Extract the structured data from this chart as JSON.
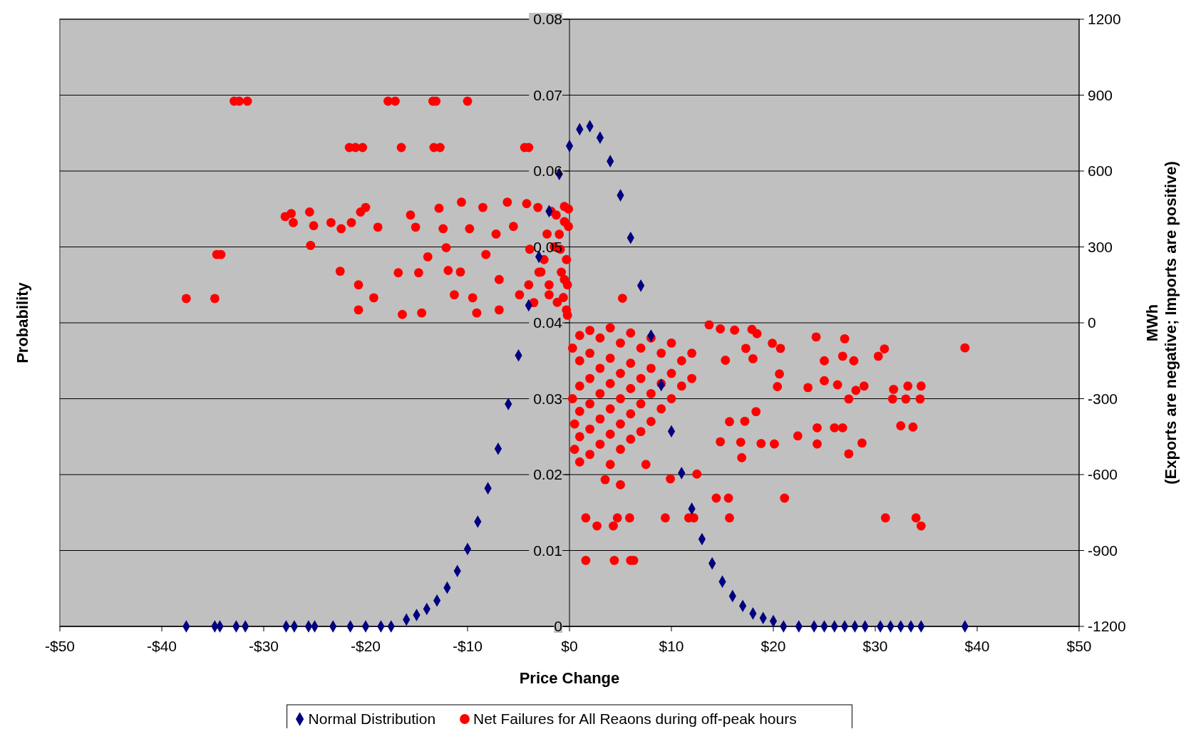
{
  "chart_data": {
    "type": "scatter",
    "xlabel": "Price Change",
    "ylabel": "Probability",
    "y2label": "MWh\n(Exports are negative; Imports are positive)",
    "xlim": [
      -50,
      50
    ],
    "xticks": [
      {
        "value": -50,
        "label": "-$50"
      },
      {
        "value": -40,
        "label": "-$40"
      },
      {
        "value": -30,
        "label": "-$30"
      },
      {
        "value": -20,
        "label": "-$20"
      },
      {
        "value": -10,
        "label": "-$10"
      },
      {
        "value": 0,
        "label": "$0"
      },
      {
        "value": 10,
        "label": "$10"
      },
      {
        "value": 20,
        "label": "$20"
      },
      {
        "value": 30,
        "label": "$30"
      },
      {
        "value": 40,
        "label": "$40"
      },
      {
        "value": 50,
        "label": "$50"
      }
    ],
    "ylim": [
      0,
      0.08
    ],
    "yticks": [
      0,
      0.01,
      0.02,
      0.03,
      0.04,
      0.05,
      0.06,
      0.07,
      0.08
    ],
    "y2lim": [
      -1200,
      1200
    ],
    "y2ticks": [
      -1200,
      -900,
      -600,
      -300,
      0,
      300,
      600,
      900,
      1200
    ],
    "grid": "y",
    "legend": "bottom",
    "series": [
      {
        "name": "Normal Distribution",
        "color": "#000080",
        "marker": "diamond",
        "x": [
          -37.6,
          -34.8,
          -34.3,
          -32.7,
          -31.8,
          -27.8,
          -27,
          -25.6,
          -25,
          -23.2,
          -21.5,
          -20,
          -18.5,
          -17.5,
          -16,
          -15,
          -14,
          -13,
          -12,
          -11,
          -10,
          -9,
          -8,
          -7,
          -6,
          -5,
          -4,
          -3,
          -2,
          -1,
          0,
          1,
          2,
          3,
          4,
          5,
          6,
          7,
          8,
          9,
          10,
          11,
          12,
          13,
          14,
          15,
          16,
          17,
          18,
          19,
          20,
          21,
          22.5,
          24,
          25,
          26,
          27,
          28,
          29,
          30.5,
          31.5,
          32.5,
          33.5,
          34.5,
          38.8
        ],
        "values": [
          0,
          0,
          0,
          0,
          0,
          0,
          0,
          0,
          0,
          0,
          0,
          0,
          0,
          0,
          0.0009,
          0.0015,
          0.0023,
          0.0034,
          0.0051,
          0.0073,
          0.0102,
          0.0138,
          0.0182,
          0.0234,
          0.0293,
          0.0357,
          0.0423,
          0.0487,
          0.0547,
          0.0596,
          0.0633,
          0.0655,
          0.0659,
          0.0644,
          0.0613,
          0.0568,
          0.0512,
          0.0449,
          0.0383,
          0.0318,
          0.0257,
          0.0202,
          0.0155,
          0.0115,
          0.0083,
          0.0059,
          0.004,
          0.0027,
          0.0017,
          0.0011,
          0.0007,
          0,
          0,
          0,
          0,
          0,
          0,
          0,
          0,
          0,
          0,
          0,
          0,
          0,
          0
        ]
      },
      {
        "name": "Net Failures for All Reaons during off-peak hours",
        "color": "#ff0000",
        "marker": "circle",
        "axis": "y2",
        "x": [
          -32.9,
          -32.4,
          -31.6,
          -17.8,
          -17.1,
          -13.4,
          -13.1,
          -10,
          -21.6,
          -21,
          -20.3,
          -16.5,
          -13.3,
          -12.7,
          -4.4,
          -4,
          -37.6,
          -34.8,
          -34.6,
          -34.2,
          -27.9,
          -27.3,
          -27.1,
          -25.5,
          -25.4,
          -25.1,
          -23.4,
          -22.4,
          -22.5,
          -21.4,
          -20.5,
          -20,
          -18.8,
          -20.7,
          -20.7,
          -19.2,
          -16.8,
          -16.4,
          -15.6,
          -15.1,
          -14.8,
          -13.9,
          -14.5,
          -12.8,
          -12.4,
          -12.1,
          -11.9,
          -10.7,
          -10.6,
          -9.8,
          -9.5,
          -8.5,
          -8.2,
          -7.2,
          -6.9,
          -6.1,
          -5.5,
          -4.9,
          -4.2,
          -3.9,
          -3.1,
          -2.8,
          -2.2,
          -1.8,
          -1.3,
          -0.9,
          -0.5,
          -0.3,
          -1.2,
          -2,
          -0.1,
          -6.9,
          -9.1,
          -11.3,
          -0.5,
          -1,
          -0.3,
          -0.8,
          -0.2,
          -1.5,
          -0.6,
          -2.5,
          -3,
          -2,
          -4,
          -3.5,
          -0.2,
          -0.1,
          -0.5,
          5.2,
          13.7,
          14.8,
          16.2,
          17.9,
          18.4,
          24.2,
          27,
          38.8,
          30.9,
          30.3,
          25,
          26.8,
          27.9,
          17.3,
          19.9,
          20.7,
          18,
          15.3,
          20.6,
          20.4,
          23.4,
          25,
          26.3,
          28.9,
          28.1,
          27.4,
          31.8,
          33.2,
          34.5,
          31.7,
          33,
          34.4,
          18.3,
          24.3,
          26,
          26.8,
          32.5,
          33.7,
          22.4,
          24.3,
          28.7,
          27.4,
          18.8,
          20.1,
          16.8,
          14.8,
          16.9,
          15.7,
          17.2,
          14.4,
          15.6,
          21.1,
          31,
          34,
          34.5,
          15.7,
          9.4,
          11.7,
          12.2,
          9.9,
          12.5,
          1.6,
          4.4,
          6,
          6.3,
          1.6,
          2.7,
          4.3,
          4.7,
          5.9,
          1,
          1,
          1,
          1,
          1,
          1,
          2,
          2,
          2,
          2,
          2,
          2,
          3,
          3,
          3,
          3,
          3,
          4,
          4,
          4,
          4,
          4,
          4,
          5,
          5,
          5,
          5,
          5,
          6,
          6,
          6,
          6,
          6,
          7,
          7,
          7,
          7,
          8,
          8,
          8,
          8,
          9,
          9,
          9,
          10,
          10,
          10,
          11,
          11,
          12,
          12,
          0.3,
          0.3,
          0.5,
          3.5,
          5,
          7.5,
          0.5
        ],
        "values": [
          876,
          876,
          876,
          876,
          876,
          876,
          876,
          876,
          693,
          693,
          693,
          693,
          693,
          693,
          693,
          693,
          96,
          96,
          270,
          270,
          420,
          432,
          396,
          438,
          306,
          384,
          396,
          372,
          204,
          396,
          438,
          456,
          378,
          150,
          51,
          99,
          198,
          33,
          426,
          378,
          198,
          261,
          39,
          453,
          372,
          297,
          207,
          201,
          477,
          372,
          99,
          456,
          270,
          351,
          171,
          477,
          381,
          111,
          471,
          291,
          456,
          201,
          351,
          441,
          426,
          291,
          171,
          51,
          81,
          111,
          381,
          51,
          39,
          111,
          400,
          350,
          250,
          200,
          150,
          300,
          100,
          250,
          200,
          150,
          150,
          80,
          30,
          450,
          460,
          97,
          -8,
          -24,
          -29,
          -26,
          -43,
          -56,
          -63,
          -99,
          -103,
          -132,
          -150,
          -132,
          -150,
          -101,
          -81,
          -101,
          -142,
          -148,
          -202,
          -252,
          -256,
          -229,
          -245,
          -250,
          -267,
          -301,
          -263,
          -250,
          -250,
          -301,
          -301,
          -301,
          -351,
          -415,
          -415,
          -415,
          -407,
          -412,
          -447,
          -479,
          -475,
          -518,
          -477,
          -479,
          -472,
          -470,
          -533,
          -391,
          -389,
          -693,
          -693,
          -693,
          -771,
          -771,
          -803,
          -771,
          -771,
          -771,
          -771,
          -617,
          -598,
          -939,
          -939,
          -939,
          -939,
          -771,
          -803,
          -803,
          -771,
          -771,
          -50,
          -150,
          -250,
          -350,
          -450,
          -550,
          -30,
          -120,
          -220,
          -320,
          -420,
          -520,
          -60,
          -180,
          -280,
          -380,
          -480,
          -20,
          -140,
          -240,
          -340,
          -440,
          -560,
          -80,
          -200,
          -300,
          -400,
          -500,
          -40,
          -160,
          -260,
          -360,
          -460,
          -100,
          -220,
          -320,
          -430,
          -60,
          -180,
          -280,
          -390,
          -120,
          -240,
          -340,
          -80,
          -200,
          -300,
          -150,
          -250,
          -120,
          -220,
          -100,
          -300,
          -500,
          -620,
          -640,
          -560,
          -400
        ]
      }
    ]
  }
}
